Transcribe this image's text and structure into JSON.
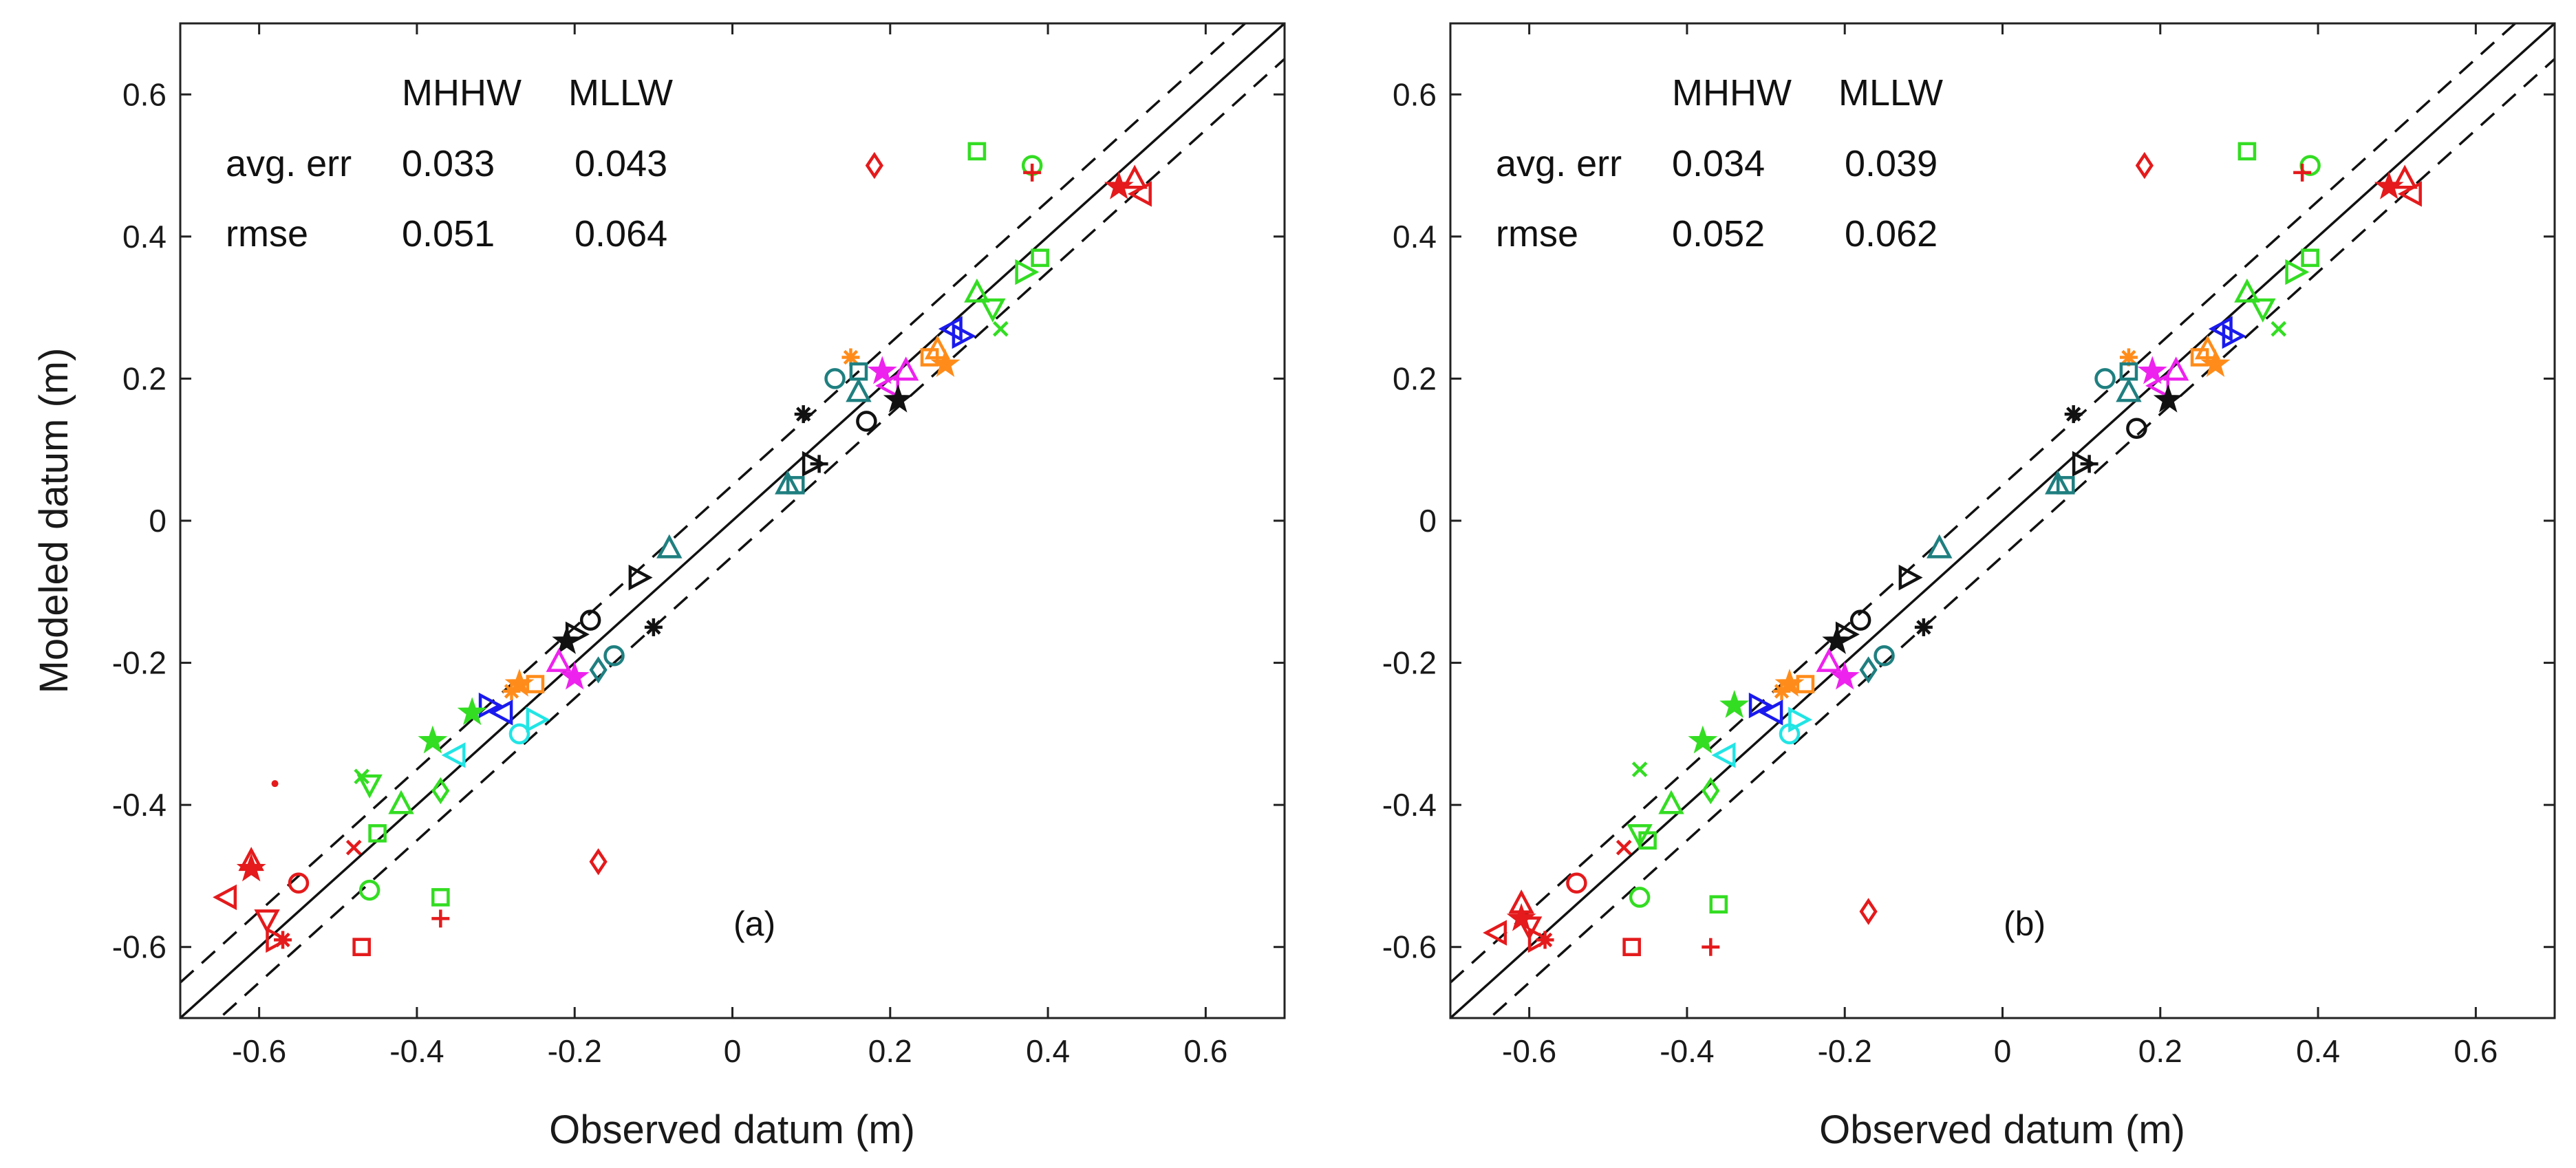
{
  "chart_data": [
    {
      "type": "scatter",
      "panel_label": "(a)",
      "xlabel": "Observed datum (m)",
      "ylabel": "Modeled datum (m)",
      "xlim": [
        -0.7,
        0.7
      ],
      "ylim": [
        -0.7,
        0.7
      ],
      "xticks": [
        "-0.6",
        "-0.4",
        "-0.2",
        "0",
        "0.2",
        "0.4",
        "0.6"
      ],
      "yticks": [
        "0.6",
        "0.4",
        "0.2",
        "0",
        "-0.2",
        "-0.4",
        "-0.6"
      ],
      "grid": false,
      "reference_lines": {
        "one_to_one": "solid",
        "offset_dashed": 0.05
      },
      "stats": {
        "col_headers": [
          "MHHW",
          "MLLW"
        ],
        "rows": [
          {
            "label": "avg. err",
            "values": [
              "0.033",
              "0.043"
            ]
          },
          {
            "label": "rmse",
            "values": [
              "0.051",
              "0.064"
            ]
          }
        ]
      },
      "points": [
        {
          "x": 0.18,
          "y": 0.5,
          "marker": "diamond",
          "color": "#e41a1c"
        },
        {
          "x": 0.31,
          "y": 0.52,
          "marker": "square",
          "color": "#33dd22"
        },
        {
          "x": 0.38,
          "y": 0.5,
          "marker": "circle",
          "color": "#33dd22"
        },
        {
          "x": 0.38,
          "y": 0.49,
          "marker": "plus",
          "color": "#e41a1c"
        },
        {
          "x": 0.49,
          "y": 0.47,
          "marker": "star",
          "color": "#e41a1c"
        },
        {
          "x": 0.51,
          "y": 0.48,
          "marker": "triangle-up",
          "color": "#e41a1c"
        },
        {
          "x": 0.52,
          "y": 0.46,
          "marker": "triangle-left",
          "color": "#e41a1c"
        },
        {
          "x": 0.31,
          "y": 0.32,
          "marker": "triangle-up",
          "color": "#33dd22"
        },
        {
          "x": 0.33,
          "y": 0.3,
          "marker": "triangle-down",
          "color": "#33dd22"
        },
        {
          "x": 0.37,
          "y": 0.35,
          "marker": "triangle-right",
          "color": "#33dd22"
        },
        {
          "x": 0.39,
          "y": 0.37,
          "marker": "square",
          "color": "#33dd22"
        },
        {
          "x": 0.34,
          "y": 0.27,
          "marker": "x",
          "color": "#33dd22"
        },
        {
          "x": 0.29,
          "y": 0.26,
          "marker": "triangle-right",
          "color": "#1a1aee"
        },
        {
          "x": 0.28,
          "y": 0.27,
          "marker": "triangle-left",
          "color": "#1a1aee"
        },
        {
          "x": 0.25,
          "y": 0.23,
          "marker": "square",
          "color": "#ff8c1a"
        },
        {
          "x": 0.27,
          "y": 0.22,
          "marker": "star",
          "color": "#ff8c1a"
        },
        {
          "x": 0.26,
          "y": 0.24,
          "marker": "triangle-up",
          "color": "#ff8c1a"
        },
        {
          "x": 0.22,
          "y": 0.21,
          "marker": "triangle-up",
          "color": "#ee22ee"
        },
        {
          "x": 0.2,
          "y": 0.19,
          "marker": "triangle-left",
          "color": "#ee22ee"
        },
        {
          "x": 0.19,
          "y": 0.21,
          "marker": "star",
          "color": "#ee22ee"
        },
        {
          "x": 0.15,
          "y": 0.23,
          "marker": "asterisk",
          "color": "#ff8c1a"
        },
        {
          "x": 0.16,
          "y": 0.21,
          "marker": "square",
          "color": "#1f7f80"
        },
        {
          "x": 0.13,
          "y": 0.2,
          "marker": "circle",
          "color": "#1f7f80"
        },
        {
          "x": 0.16,
          "y": 0.18,
          "marker": "triangle-up",
          "color": "#1f7f80"
        },
        {
          "x": 0.17,
          "y": 0.14,
          "marker": "circle",
          "color": "#111111"
        },
        {
          "x": 0.21,
          "y": 0.17,
          "marker": "star",
          "color": "#111111"
        },
        {
          "x": 0.09,
          "y": 0.15,
          "marker": "asterisk",
          "color": "#111111"
        },
        {
          "x": 0.1,
          "y": 0.08,
          "marker": "triangle-right",
          "color": "#111111"
        },
        {
          "x": 0.11,
          "y": 0.08,
          "marker": "plus",
          "color": "#111111"
        },
        {
          "x": 0.07,
          "y": 0.05,
          "marker": "triangle-up",
          "color": "#1f7f80"
        },
        {
          "x": 0.08,
          "y": 0.05,
          "marker": "square",
          "color": "#1f7f80"
        },
        {
          "x": -0.08,
          "y": -0.04,
          "marker": "triangle-up",
          "color": "#1f7f80"
        },
        {
          "x": -0.12,
          "y": -0.08,
          "marker": "triangle-right",
          "color": "#111111"
        },
        {
          "x": -0.1,
          "y": -0.15,
          "marker": "asterisk",
          "color": "#111111"
        },
        {
          "x": -0.18,
          "y": -0.14,
          "marker": "circle",
          "color": "#111111"
        },
        {
          "x": -0.21,
          "y": -0.17,
          "marker": "star",
          "color": "#111111"
        },
        {
          "x": -0.2,
          "y": -0.16,
          "marker": "triangle-right",
          "color": "#111111"
        },
        {
          "x": -0.15,
          "y": -0.19,
          "marker": "circle",
          "color": "#1f7f80"
        },
        {
          "x": -0.17,
          "y": -0.21,
          "marker": "diamond",
          "color": "#1f7f80"
        },
        {
          "x": -0.22,
          "y": -0.2,
          "marker": "triangle-up",
          "color": "#ee22ee"
        },
        {
          "x": -0.2,
          "y": -0.22,
          "marker": "star",
          "color": "#ee22ee"
        },
        {
          "x": -0.25,
          "y": -0.23,
          "marker": "square",
          "color": "#ff8c1a"
        },
        {
          "x": -0.27,
          "y": -0.23,
          "marker": "star",
          "color": "#ff8c1a"
        },
        {
          "x": -0.28,
          "y": -0.24,
          "marker": "asterisk",
          "color": "#ff8c1a"
        },
        {
          "x": -0.31,
          "y": -0.26,
          "marker": "triangle-right",
          "color": "#1a1aee"
        },
        {
          "x": -0.29,
          "y": -0.27,
          "marker": "triangle-left",
          "color": "#1a1aee"
        },
        {
          "x": -0.33,
          "y": -0.27,
          "marker": "star",
          "color": "#33dd22"
        },
        {
          "x": -0.25,
          "y": -0.28,
          "marker": "triangle-right",
          "color": "#22e5e5"
        },
        {
          "x": -0.27,
          "y": -0.3,
          "marker": "circle",
          "color": "#22e5e5"
        },
        {
          "x": -0.35,
          "y": -0.33,
          "marker": "triangle-left",
          "color": "#22e5e5"
        },
        {
          "x": -0.38,
          "y": -0.31,
          "marker": "star",
          "color": "#33dd22"
        },
        {
          "x": -0.37,
          "y": -0.38,
          "marker": "diamond",
          "color": "#33dd22"
        },
        {
          "x": -0.42,
          "y": -0.4,
          "marker": "triangle-up",
          "color": "#33dd22"
        },
        {
          "x": -0.47,
          "y": -0.36,
          "marker": "x",
          "color": "#33dd22"
        },
        {
          "x": -0.46,
          "y": -0.37,
          "marker": "triangle-down",
          "color": "#33dd22"
        },
        {
          "x": -0.45,
          "y": -0.44,
          "marker": "square",
          "color": "#33dd22"
        },
        {
          "x": -0.46,
          "y": -0.52,
          "marker": "circle",
          "color": "#33dd22"
        },
        {
          "x": -0.37,
          "y": -0.53,
          "marker": "square",
          "color": "#33dd22"
        },
        {
          "x": -0.17,
          "y": -0.48,
          "marker": "diamond",
          "color": "#e41a1c"
        },
        {
          "x": -0.37,
          "y": -0.56,
          "marker": "plus",
          "color": "#e41a1c"
        },
        {
          "x": -0.47,
          "y": -0.6,
          "marker": "square",
          "color": "#e41a1c"
        },
        {
          "x": -0.48,
          "y": -0.46,
          "marker": "x",
          "color": "#e41a1c"
        },
        {
          "x": -0.55,
          "y": -0.51,
          "marker": "circle",
          "color": "#e41a1c"
        },
        {
          "x": -0.58,
          "y": -0.37,
          "marker": "point",
          "color": "#e41a1c"
        },
        {
          "x": -0.61,
          "y": -0.48,
          "marker": "triangle-up",
          "color": "#e41a1c"
        },
        {
          "x": -0.61,
          "y": -0.49,
          "marker": "star",
          "color": "#e41a1c"
        },
        {
          "x": -0.64,
          "y": -0.53,
          "marker": "triangle-left",
          "color": "#e41a1c"
        },
        {
          "x": -0.59,
          "y": -0.56,
          "marker": "triangle-down",
          "color": "#e41a1c"
        },
        {
          "x": -0.58,
          "y": -0.59,
          "marker": "triangle-right",
          "color": "#e41a1c"
        },
        {
          "x": -0.57,
          "y": -0.59,
          "marker": "asterisk",
          "color": "#e41a1c"
        }
      ]
    },
    {
      "type": "scatter",
      "panel_label": "(b)",
      "xlabel": "Observed datum (m)",
      "ylabel": "",
      "xlim": [
        -0.7,
        0.7
      ],
      "ylim": [
        -0.7,
        0.7
      ],
      "xticks": [
        "-0.6",
        "-0.4",
        "-0.2",
        "0",
        "0.2",
        "0.4",
        "0.6"
      ],
      "yticks": [
        "0.6",
        "0.4",
        "0.2",
        "0",
        "-0.2",
        "-0.4",
        "-0.6"
      ],
      "grid": false,
      "reference_lines": {
        "one_to_one": "solid",
        "offset_dashed": 0.05
      },
      "stats": {
        "col_headers": [
          "MHHW",
          "MLLW"
        ],
        "rows": [
          {
            "label": "avg. err",
            "values": [
              "0.034",
              "0.039"
            ]
          },
          {
            "label": "rmse",
            "values": [
              "0.052",
              "0.062"
            ]
          }
        ]
      },
      "points": [
        {
          "x": 0.18,
          "y": 0.5,
          "marker": "diamond",
          "color": "#e41a1c"
        },
        {
          "x": 0.31,
          "y": 0.52,
          "marker": "square",
          "color": "#33dd22"
        },
        {
          "x": 0.39,
          "y": 0.5,
          "marker": "circle",
          "color": "#33dd22"
        },
        {
          "x": 0.38,
          "y": 0.49,
          "marker": "plus",
          "color": "#e41a1c"
        },
        {
          "x": 0.49,
          "y": 0.47,
          "marker": "star",
          "color": "#e41a1c"
        },
        {
          "x": 0.51,
          "y": 0.48,
          "marker": "triangle-up",
          "color": "#e41a1c"
        },
        {
          "x": 0.52,
          "y": 0.46,
          "marker": "triangle-left",
          "color": "#e41a1c"
        },
        {
          "x": 0.31,
          "y": 0.32,
          "marker": "triangle-up",
          "color": "#33dd22"
        },
        {
          "x": 0.33,
          "y": 0.3,
          "marker": "triangle-down",
          "color": "#33dd22"
        },
        {
          "x": 0.37,
          "y": 0.35,
          "marker": "triangle-right",
          "color": "#33dd22"
        },
        {
          "x": 0.39,
          "y": 0.37,
          "marker": "square",
          "color": "#33dd22"
        },
        {
          "x": 0.35,
          "y": 0.27,
          "marker": "x",
          "color": "#33dd22"
        },
        {
          "x": 0.29,
          "y": 0.26,
          "marker": "triangle-right",
          "color": "#1a1aee"
        },
        {
          "x": 0.28,
          "y": 0.27,
          "marker": "triangle-left",
          "color": "#1a1aee"
        },
        {
          "x": 0.25,
          "y": 0.23,
          "marker": "square",
          "color": "#ff8c1a"
        },
        {
          "x": 0.27,
          "y": 0.22,
          "marker": "star",
          "color": "#ff8c1a"
        },
        {
          "x": 0.26,
          "y": 0.24,
          "marker": "triangle-up",
          "color": "#ff8c1a"
        },
        {
          "x": 0.22,
          "y": 0.21,
          "marker": "triangle-up",
          "color": "#ee22ee"
        },
        {
          "x": 0.2,
          "y": 0.19,
          "marker": "triangle-left",
          "color": "#ee22ee"
        },
        {
          "x": 0.19,
          "y": 0.21,
          "marker": "star",
          "color": "#ee22ee"
        },
        {
          "x": 0.16,
          "y": 0.23,
          "marker": "asterisk",
          "color": "#ff8c1a"
        },
        {
          "x": 0.16,
          "y": 0.21,
          "marker": "square",
          "color": "#1f7f80"
        },
        {
          "x": 0.13,
          "y": 0.2,
          "marker": "circle",
          "color": "#1f7f80"
        },
        {
          "x": 0.16,
          "y": 0.18,
          "marker": "triangle-up",
          "color": "#1f7f80"
        },
        {
          "x": 0.17,
          "y": 0.13,
          "marker": "circle",
          "color": "#111111"
        },
        {
          "x": 0.21,
          "y": 0.17,
          "marker": "star",
          "color": "#111111"
        },
        {
          "x": 0.09,
          "y": 0.15,
          "marker": "asterisk",
          "color": "#111111"
        },
        {
          "x": 0.1,
          "y": 0.08,
          "marker": "triangle-right",
          "color": "#111111"
        },
        {
          "x": 0.11,
          "y": 0.08,
          "marker": "plus",
          "color": "#111111"
        },
        {
          "x": 0.07,
          "y": 0.05,
          "marker": "triangle-up",
          "color": "#1f7f80"
        },
        {
          "x": 0.08,
          "y": 0.05,
          "marker": "square",
          "color": "#1f7f80"
        },
        {
          "x": -0.08,
          "y": -0.04,
          "marker": "triangle-up",
          "color": "#1f7f80"
        },
        {
          "x": -0.12,
          "y": -0.08,
          "marker": "triangle-right",
          "color": "#111111"
        },
        {
          "x": -0.1,
          "y": -0.15,
          "marker": "asterisk",
          "color": "#111111"
        },
        {
          "x": -0.18,
          "y": -0.14,
          "marker": "circle",
          "color": "#111111"
        },
        {
          "x": -0.21,
          "y": -0.17,
          "marker": "star",
          "color": "#111111"
        },
        {
          "x": -0.2,
          "y": -0.16,
          "marker": "triangle-right",
          "color": "#111111"
        },
        {
          "x": -0.15,
          "y": -0.19,
          "marker": "circle",
          "color": "#1f7f80"
        },
        {
          "x": -0.17,
          "y": -0.21,
          "marker": "diamond",
          "color": "#1f7f80"
        },
        {
          "x": -0.22,
          "y": -0.2,
          "marker": "triangle-up",
          "color": "#ee22ee"
        },
        {
          "x": -0.2,
          "y": -0.22,
          "marker": "star",
          "color": "#ee22ee"
        },
        {
          "x": -0.25,
          "y": -0.23,
          "marker": "square",
          "color": "#ff8c1a"
        },
        {
          "x": -0.27,
          "y": -0.23,
          "marker": "star",
          "color": "#ff8c1a"
        },
        {
          "x": -0.28,
          "y": -0.24,
          "marker": "asterisk",
          "color": "#ff8c1a"
        },
        {
          "x": -0.31,
          "y": -0.26,
          "marker": "triangle-right",
          "color": "#1a1aee"
        },
        {
          "x": -0.29,
          "y": -0.27,
          "marker": "triangle-left",
          "color": "#1a1aee"
        },
        {
          "x": -0.34,
          "y": -0.26,
          "marker": "star",
          "color": "#33dd22"
        },
        {
          "x": -0.26,
          "y": -0.28,
          "marker": "triangle-right",
          "color": "#22e5e5"
        },
        {
          "x": -0.27,
          "y": -0.3,
          "marker": "circle",
          "color": "#22e5e5"
        },
        {
          "x": -0.35,
          "y": -0.33,
          "marker": "triangle-left",
          "color": "#22e5e5"
        },
        {
          "x": -0.38,
          "y": -0.31,
          "marker": "star",
          "color": "#33dd22"
        },
        {
          "x": -0.37,
          "y": -0.38,
          "marker": "diamond",
          "color": "#33dd22"
        },
        {
          "x": -0.42,
          "y": -0.4,
          "marker": "triangle-up",
          "color": "#33dd22"
        },
        {
          "x": -0.46,
          "y": -0.35,
          "marker": "x",
          "color": "#33dd22"
        },
        {
          "x": -0.46,
          "y": -0.44,
          "marker": "triangle-down",
          "color": "#33dd22"
        },
        {
          "x": -0.45,
          "y": -0.45,
          "marker": "square",
          "color": "#33dd22"
        },
        {
          "x": -0.46,
          "y": -0.53,
          "marker": "circle",
          "color": "#33dd22"
        },
        {
          "x": -0.36,
          "y": -0.54,
          "marker": "square",
          "color": "#33dd22"
        },
        {
          "x": -0.17,
          "y": -0.55,
          "marker": "diamond",
          "color": "#e41a1c"
        },
        {
          "x": -0.37,
          "y": -0.6,
          "marker": "plus",
          "color": "#e41a1c"
        },
        {
          "x": -0.47,
          "y": -0.6,
          "marker": "square",
          "color": "#e41a1c"
        },
        {
          "x": -0.48,
          "y": -0.46,
          "marker": "x",
          "color": "#e41a1c"
        },
        {
          "x": -0.54,
          "y": -0.51,
          "marker": "circle",
          "color": "#e41a1c"
        },
        {
          "x": -0.61,
          "y": -0.54,
          "marker": "triangle-up",
          "color": "#e41a1c"
        },
        {
          "x": -0.61,
          "y": -0.56,
          "marker": "star",
          "color": "#e41a1c"
        },
        {
          "x": -0.64,
          "y": -0.58,
          "marker": "triangle-left",
          "color": "#e41a1c"
        },
        {
          "x": -0.6,
          "y": -0.57,
          "marker": "triangle-down",
          "color": "#e41a1c"
        },
        {
          "x": -0.59,
          "y": -0.59,
          "marker": "triangle-right",
          "color": "#e41a1c"
        },
        {
          "x": -0.58,
          "y": -0.59,
          "marker": "asterisk",
          "color": "#e41a1c"
        }
      ]
    }
  ]
}
